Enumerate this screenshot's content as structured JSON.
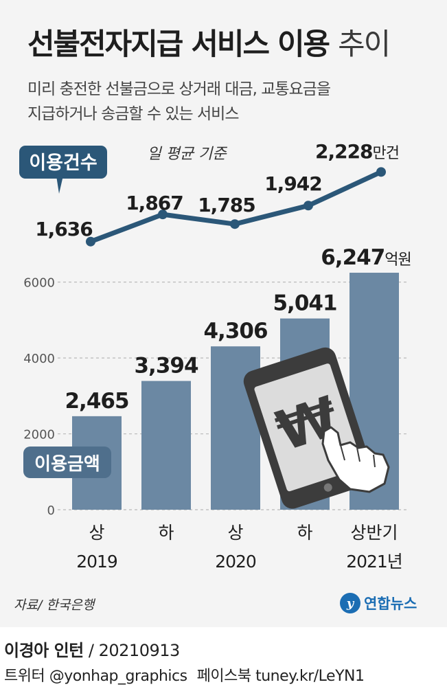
{
  "header": {
    "title_bold": "선불전자지급 서비스 이용",
    "title_light": "추이",
    "subtitle_line1": "미리 충전한 선불금으로 상거래 대금, 교통요금을",
    "subtitle_line2": "지급하거나 송금할 수 있는 서비스"
  },
  "labels": {
    "line_badge": "이용건수",
    "line_note": "일 평균 기준",
    "line_unit": "만건",
    "bar_badge": "이용금액",
    "bar_unit": "억원"
  },
  "chart_data": {
    "type": "bar",
    "categories": [
      [
        "상",
        "2019"
      ],
      [
        "하",
        ""
      ],
      [
        "상",
        "2020"
      ],
      [
        "하",
        ""
      ],
      [
        "상반기",
        "2021년"
      ]
    ],
    "values": [
      2465,
      3394,
      4306,
      5041,
      6247
    ],
    "value_labels": [
      "2,465",
      "3,394",
      "4,306",
      "5,041",
      "6,247"
    ],
    "ylim": [
      0,
      6700
    ],
    "yticks": [
      0,
      2000,
      4000,
      6000
    ],
    "grid": true,
    "bar_color": "#6b88a3",
    "line_series": {
      "name": "이용건수",
      "values": [
        1636,
        1867,
        1785,
        1942,
        2228
      ],
      "value_labels": [
        "1,636",
        "1,867",
        "1,785",
        "1,942",
        "2,228"
      ],
      "color": "#2b5778"
    }
  },
  "footer": {
    "source": "자료/ 한국은행",
    "logo_text": "연합뉴스",
    "author": "이경아 인턴",
    "date": " / 20210913",
    "twitter": "트위터 @yonhap_graphics",
    "facebook": "페이스북 tuney.kr/LeYN1"
  },
  "colors": {
    "accent": "#2b5778",
    "bar": "#6b88a3",
    "badge_bar": "#4f6f8c",
    "logo": "#1b6db3"
  }
}
